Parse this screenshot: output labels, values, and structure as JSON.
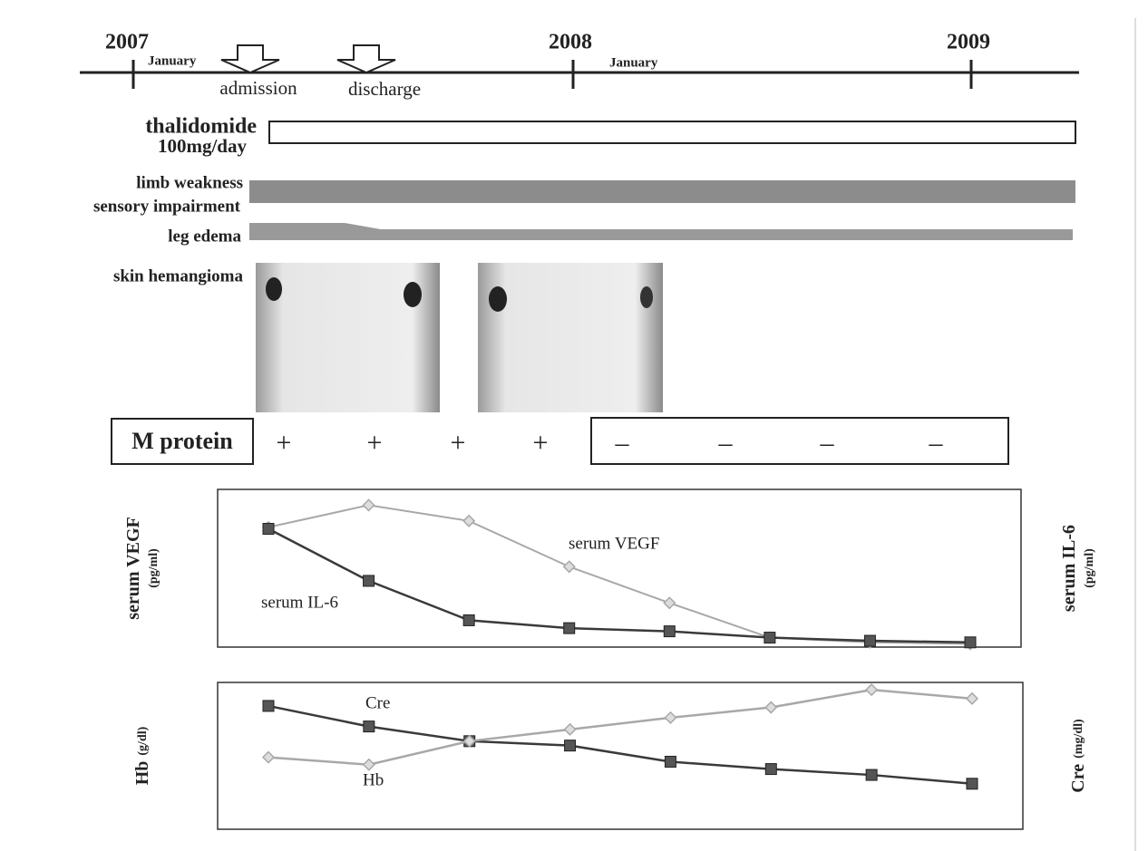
{
  "timeline": {
    "years": [
      "2007",
      "2008",
      "2009"
    ],
    "months": [
      "January",
      "January"
    ],
    "events": [
      "admission",
      "discharge"
    ]
  },
  "rows": {
    "thalidomide": [
      "thalidomide",
      "100mg/day"
    ],
    "symptoms": [
      "limb weakness",
      "sensory impairment"
    ],
    "edema": "leg edema",
    "skin": "skin hemangioma"
  },
  "m_protein": {
    "label": "M protein",
    "results": [
      "+",
      "+",
      "+",
      "+",
      "–",
      "–",
      "–",
      "–"
    ]
  },
  "chart_data": [
    {
      "type": "line",
      "y_label": [
        "serum VEGF",
        "(pg/ml)"
      ],
      "y2_label": [
        "serum IL-6",
        "(pg/ml)"
      ],
      "categories": [
        null,
        null,
        null,
        null,
        null,
        null,
        null,
        null
      ],
      "ylim": [
        0,
        100
      ],
      "series": [
        {
          "name": "serum VEGF",
          "color": "#a8a8a8",
          "marker": "diamond",
          "values": [
            76,
            90,
            80,
            51,
            28,
            6,
            3,
            2
          ]
        },
        {
          "name": "serum IL-6",
          "color": "#3a3a3a",
          "marker": "square",
          "axis": "y2",
          "values": [
            75,
            42,
            17,
            12,
            10,
            6,
            4,
            3
          ]
        }
      ]
    },
    {
      "type": "line",
      "y_label": [
        "Hb",
        "(g/dl)"
      ],
      "y2_label": [
        "Cre",
        "(mg/dl)"
      ],
      "categories": [
        null,
        null,
        null,
        null,
        null,
        null,
        null,
        null
      ],
      "ylim": [
        0,
        100
      ],
      "series": [
        {
          "name": "Cre",
          "color": "#3a3a3a",
          "marker": "square",
          "axis": "y2",
          "values": [
            84,
            70,
            60,
            57,
            46,
            41,
            37,
            31
          ]
        },
        {
          "name": "Hb",
          "color": "#a8a8a8",
          "marker": "diamond",
          "values": [
            49,
            44,
            60,
            68,
            76,
            83,
            95,
            89
          ]
        }
      ]
    }
  ]
}
